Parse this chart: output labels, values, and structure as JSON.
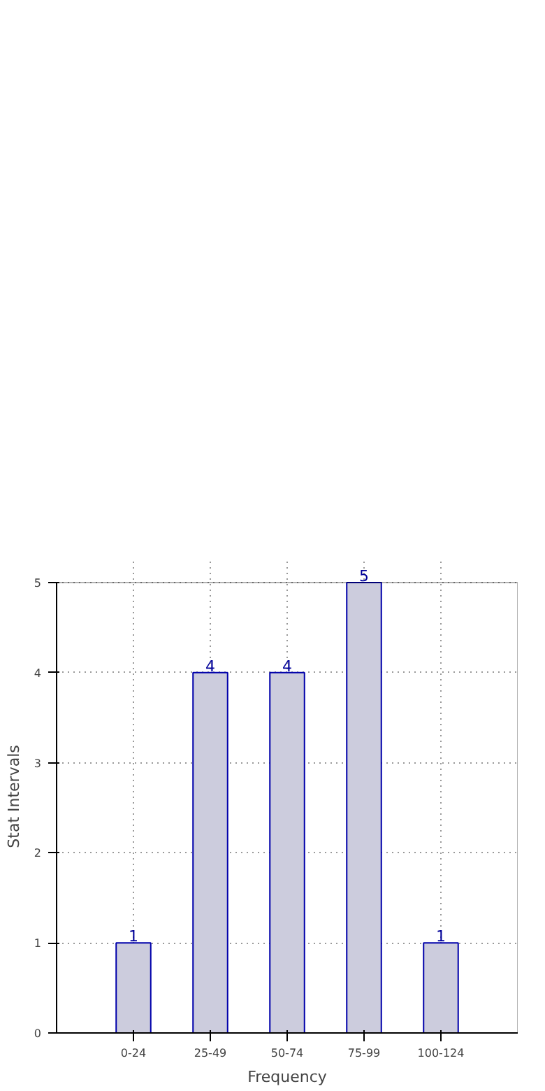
{
  "chart_data": {
    "type": "bar",
    "xlabel": "Frequency",
    "ylabel": "Stat Intervals",
    "categories": [
      "0-24",
      "25-49",
      "50-74",
      "75-99",
      "100-124"
    ],
    "series": [
      {
        "color": "#ccccdd",
        "values": [
          1,
          4,
          4,
          5,
          1
        ]
      }
    ],
    "ylim": [
      0,
      5
    ],
    "yticks": [
      0,
      1,
      2,
      3,
      4,
      5
    ],
    "grid": true,
    "data_labels": true
  }
}
